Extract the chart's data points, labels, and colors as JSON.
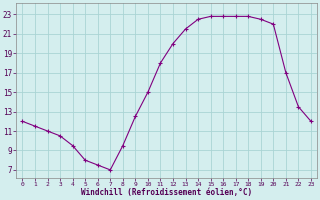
{
  "x": [
    0,
    1,
    2,
    3,
    4,
    5,
    6,
    7,
    8,
    9,
    10,
    11,
    12,
    13,
    14,
    15,
    16,
    17,
    18,
    19,
    20,
    21,
    22,
    23
  ],
  "y": [
    12.0,
    11.5,
    11.0,
    10.5,
    9.5,
    8.0,
    7.5,
    7.0,
    9.5,
    12.5,
    15.0,
    18.0,
    20.0,
    21.5,
    22.5,
    22.8,
    22.8,
    22.8,
    22.8,
    22.5,
    22.0,
    17.0,
    13.5,
    12.0
  ],
  "line_color": "#800080",
  "marker": "+",
  "marker_size": 3,
  "marker_lw": 0.8,
  "line_width": 0.8,
  "bg_color": "#d4eeee",
  "grid_color": "#aad4d4",
  "xlabel": "Windchill (Refroidissement éolien,°C)",
  "xlabel_fontsize": 5.5,
  "ylabel_ticks": [
    7,
    9,
    11,
    13,
    15,
    17,
    19,
    21,
    23
  ],
  "ytick_fontsize": 5.5,
  "xtick_fontsize": 4.5,
  "ylim": [
    6.2,
    24.2
  ],
  "xlim": [
    -0.5,
    23.5
  ]
}
